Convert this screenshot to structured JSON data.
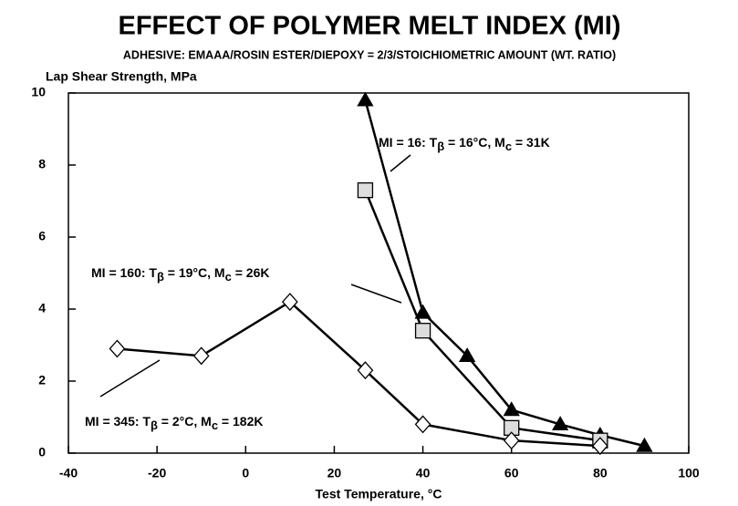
{
  "chart_data": {
    "type": "line",
    "title": "EFFECT OF POLYMER MELT INDEX (MI)",
    "subtitle": "ADHESIVE: EMAAA/ROSIN ESTER/DIEPOXY = 2/3/STOICHIOMETRIC AMOUNT (WT. RATIO)",
    "y_label": "Lap Shear Strength, MPa",
    "x_label": "Test Temperature, °C",
    "xlim": [
      -40,
      100
    ],
    "xticks": [
      -40,
      -20,
      0,
      20,
      40,
      60,
      80,
      100
    ],
    "ylim": [
      0,
      10
    ],
    "yticks": [
      0,
      2,
      4,
      6,
      8,
      10
    ],
    "series": [
      {
        "marker": "triangle",
        "color": "#000000",
        "x": [
          27,
          40,
          50,
          60,
          71,
          80,
          90
        ],
        "values": [
          9.8,
          3.9,
          2.7,
          1.2,
          0.8,
          0.5,
          0.2
        ]
      },
      {
        "marker": "square",
        "color": "#dddddd",
        "x": [
          27,
          40,
          60,
          80
        ],
        "values": [
          7.3,
          3.4,
          0.7,
          0.35
        ]
      },
      {
        "marker": "diamond",
        "color": "#ffffff",
        "x": [
          -29,
          -10,
          10,
          27,
          40,
          60,
          80
        ],
        "values": [
          2.9,
          2.7,
          4.2,
          2.3,
          0.8,
          0.35,
          0.2
        ]
      }
    ],
    "annotations": [
      [
        "MI = 16:  T",
        "β",
        " = 16°C, M",
        "c",
        " = 31K"
      ],
      [
        "MI = 160: T",
        "β",
        " = 19°C, M",
        "c",
        " = 26K"
      ],
      [
        "MI = 345: T",
        "β",
        " = 2°C, M",
        "c",
        " = 182K"
      ]
    ]
  }
}
